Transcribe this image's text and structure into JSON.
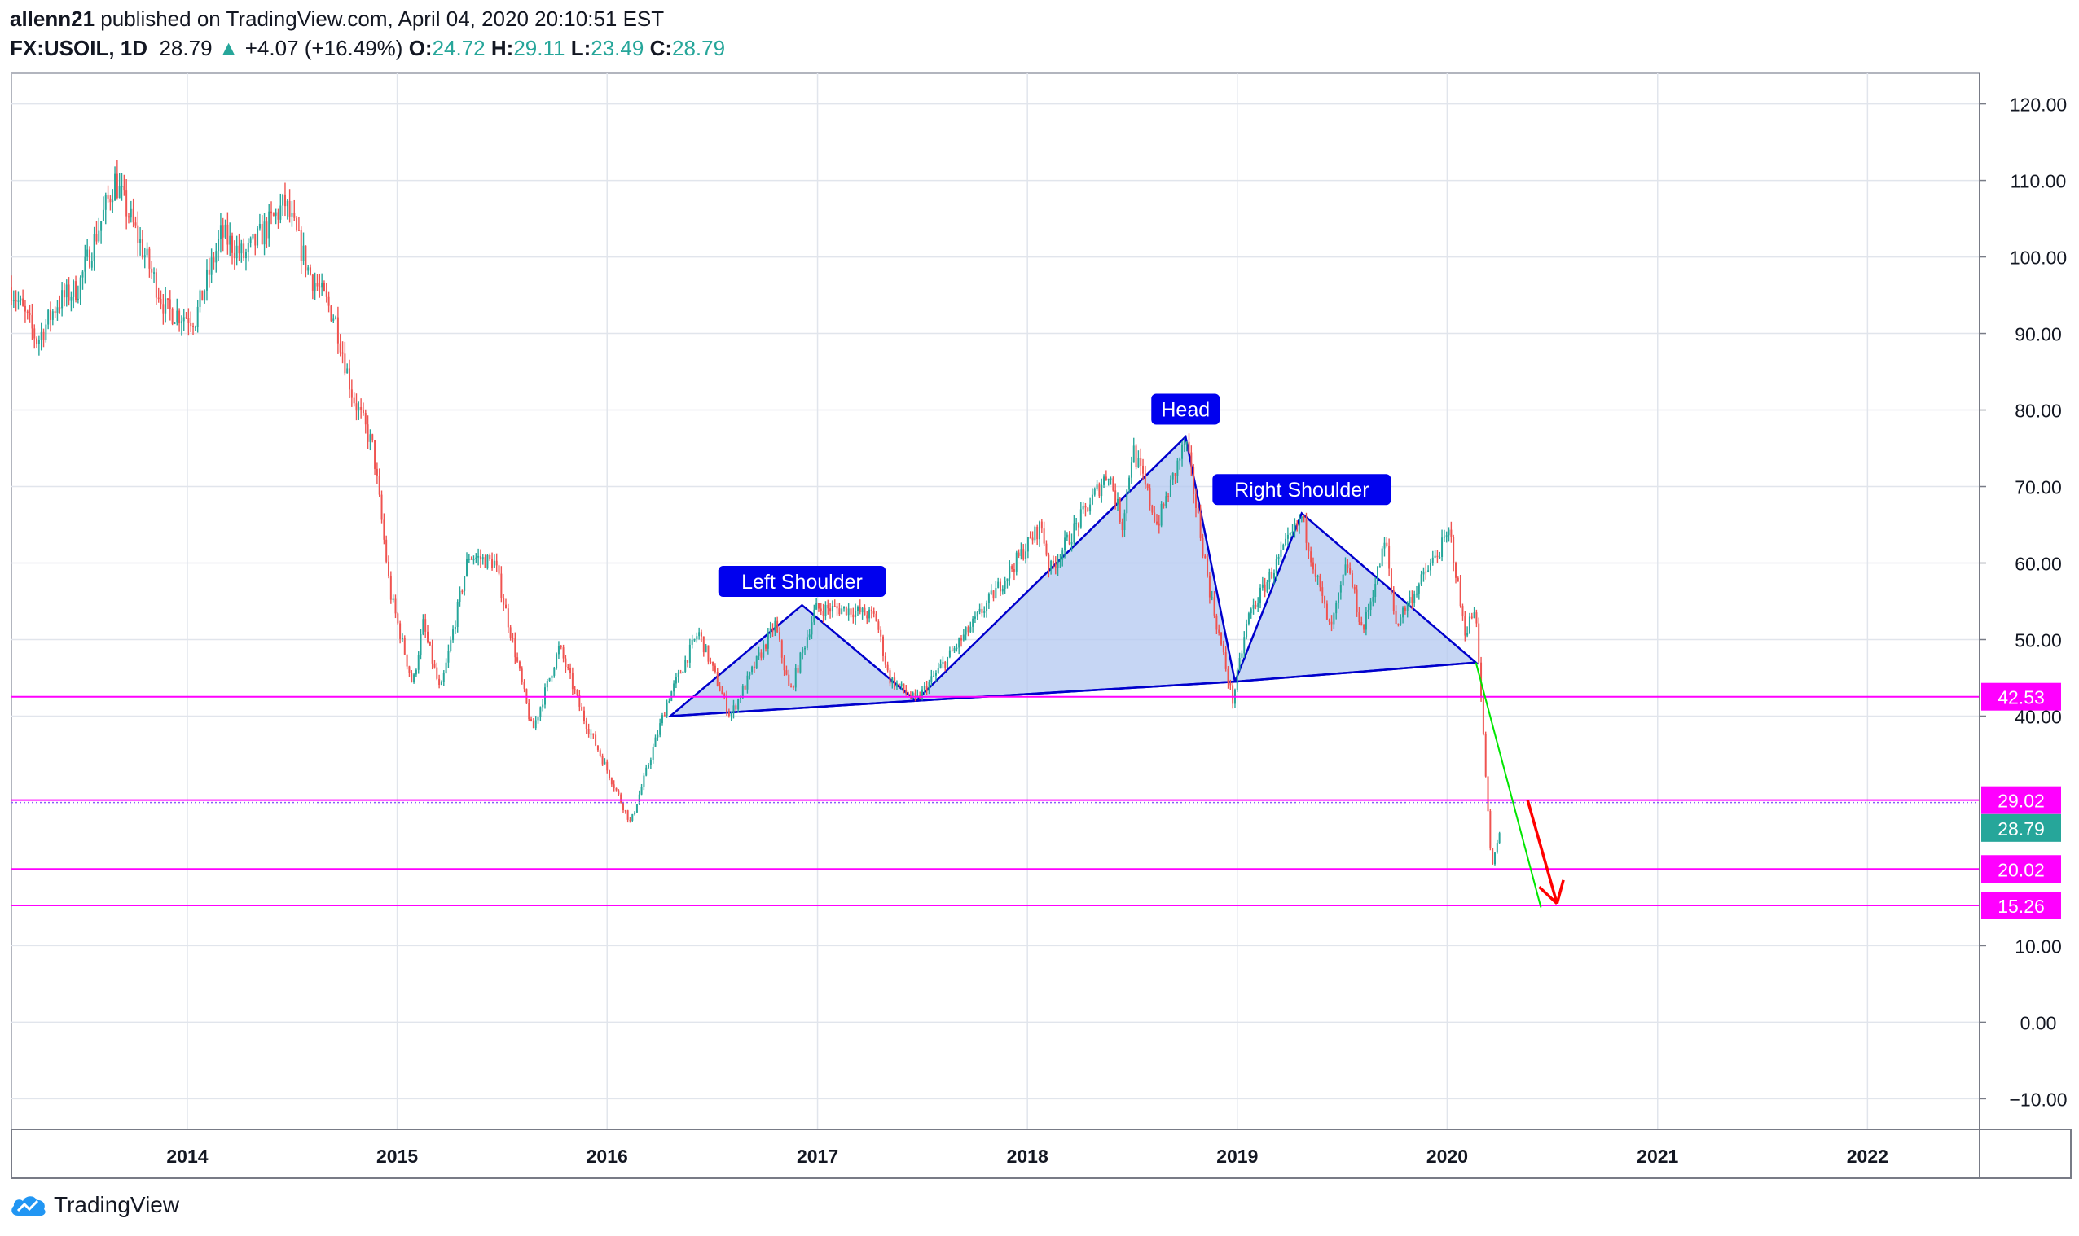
{
  "header": {
    "author": "allenn21",
    "published_text": " published on TradingView.com, April 04, 2020 20:10:51 EST",
    "symbol": "FX:USOIL, 1D",
    "last": "28.79",
    "change_arrow": "▲",
    "change": "+4.07 (+16.49%)",
    "o_label": "O:",
    "o_value": "24.72",
    "h_label": "H:",
    "h_value": "29.11",
    "l_label": "L:",
    "l_value": "23.49",
    "c_label": "C:",
    "c_value": "28.79"
  },
  "footer": {
    "brand": "TradingView",
    "logo_icon": "tradingview-cloud-icon"
  },
  "colors": {
    "up": "#26a69a",
    "down": "#ef5350",
    "level": "#ff00ff",
    "pattern_line": "#0000cc",
    "pattern_fill": "#b3c8f0",
    "label_bg": "#0000ee",
    "price_badge": "#26a69a",
    "projection": "#00e600",
    "arrow": "#ff0000"
  },
  "chart_data": {
    "type": "candlestick",
    "x_axis": {
      "type": "date",
      "range": [
        "2013-03-01",
        "2022-07-15"
      ],
      "ticks": [
        "2014",
        "2015",
        "2016",
        "2017",
        "2018",
        "2019",
        "2020",
        "2021",
        "2022"
      ]
    },
    "y_axis": {
      "range": [
        -14,
        124
      ],
      "ticks": [
        "120.00",
        "110.00",
        "100.00",
        "90.00",
        "80.00",
        "70.00",
        "60.00",
        "50.00",
        "40.00",
        "10.00",
        "0.00",
        "−10.00"
      ],
      "side": "right"
    },
    "grid": true,
    "price_path": [
      [
        "2013-03-01",
        96
      ],
      [
        "2013-04-15",
        89
      ],
      [
        "2013-05-20",
        94
      ],
      [
        "2013-06-25",
        96
      ],
      [
        "2013-08-28",
        110
      ],
      [
        "2013-10-10",
        102
      ],
      [
        "2013-11-25",
        93
      ],
      [
        "2014-01-15",
        92
      ],
      [
        "2014-03-01",
        103
      ],
      [
        "2014-04-10",
        100
      ],
      [
        "2014-06-20",
        107
      ],
      [
        "2014-08-01",
        98
      ],
      [
        "2014-09-15",
        92
      ],
      [
        "2014-10-15",
        82
      ],
      [
        "2014-11-20",
        75
      ],
      [
        "2014-12-20",
        56
      ],
      [
        "2015-01-28",
        44
      ],
      [
        "2015-02-15",
        52
      ],
      [
        "2015-03-17",
        43
      ],
      [
        "2015-05-05",
        61
      ],
      [
        "2015-06-20",
        60
      ],
      [
        "2015-07-20",
        50
      ],
      [
        "2015-08-24",
        38
      ],
      [
        "2015-10-10",
        49
      ],
      [
        "2015-11-20",
        40
      ],
      [
        "2015-12-20",
        35
      ],
      [
        "2016-02-11",
        26
      ],
      [
        "2016-04-15",
        42
      ],
      [
        "2016-06-08",
        51
      ],
      [
        "2016-08-02",
        40
      ],
      [
        "2016-10-19",
        52
      ],
      [
        "2016-11-14",
        43
      ],
      [
        "2016-12-28",
        54
      ],
      [
        "2017-02-20",
        54
      ],
      [
        "2017-04-12",
        53
      ],
      [
        "2017-05-05",
        45
      ],
      [
        "2017-06-21",
        42
      ],
      [
        "2017-09-28",
        52
      ],
      [
        "2018-01-25",
        65
      ],
      [
        "2018-02-09",
        59
      ],
      [
        "2018-05-22",
        72
      ],
      [
        "2018-06-15",
        65
      ],
      [
        "2018-07-03",
        75
      ],
      [
        "2018-08-15",
        65
      ],
      [
        "2018-10-03",
        76
      ],
      [
        "2018-11-15",
        56
      ],
      [
        "2018-12-24",
        42
      ],
      [
        "2019-01-20",
        53
      ],
      [
        "2019-04-23",
        66
      ],
      [
        "2019-06-12",
        51
      ],
      [
        "2019-07-11",
        60
      ],
      [
        "2019-08-07",
        51
      ],
      [
        "2019-09-16",
        63
      ],
      [
        "2019-10-03",
        52
      ],
      [
        "2020-01-06",
        64
      ],
      [
        "2020-01-31",
        51
      ],
      [
        "2020-02-20",
        54
      ],
      [
        "2020-03-09",
        31
      ],
      [
        "2020-03-18",
        20
      ],
      [
        "2020-04-02",
        25
      ],
      [
        "2020-04-03",
        28.79
      ]
    ],
    "horizontal_levels": [
      {
        "value": 42.53,
        "label": "42.53"
      },
      {
        "value": 29.02,
        "label": "29.02"
      },
      {
        "value": 20.02,
        "label": "20.02"
      },
      {
        "value": 15.26,
        "label": "15.26"
      }
    ],
    "last_price": {
      "value": 28.79,
      "label": "28.79"
    },
    "pattern": {
      "type": "head and shoulders",
      "points": {
        "left_base": [
          "2016-04-20",
          40
        ],
        "left_shoulder": [
          "2016-12-05",
          54.5
        ],
        "neck_1": [
          "2017-06-21",
          42
        ],
        "head": [
          "2018-10-03",
          76.5
        ],
        "neck_2": [
          "2018-12-28",
          44.5
        ],
        "right_shoulder": [
          "2019-04-23",
          66.5
        ],
        "right_base": [
          "2020-02-20",
          47
        ]
      },
      "labels": [
        {
          "text": "Left Shoulder",
          "at": [
            "2016-12-05",
            57.5
          ]
        },
        {
          "text": "Head",
          "at": [
            "2018-10-03",
            80
          ]
        },
        {
          "text": "Right Shoulder",
          "at": [
            "2019-04-23",
            69.5
          ]
        }
      ]
    },
    "projection_line": {
      "from": [
        "2020-02-20",
        47
      ],
      "to": [
        "2020-06-12",
        15
      ]
    },
    "arrow": {
      "from": [
        "2020-05-20",
        29
      ],
      "to": [
        "2020-07-10",
        15.5
      ]
    }
  }
}
